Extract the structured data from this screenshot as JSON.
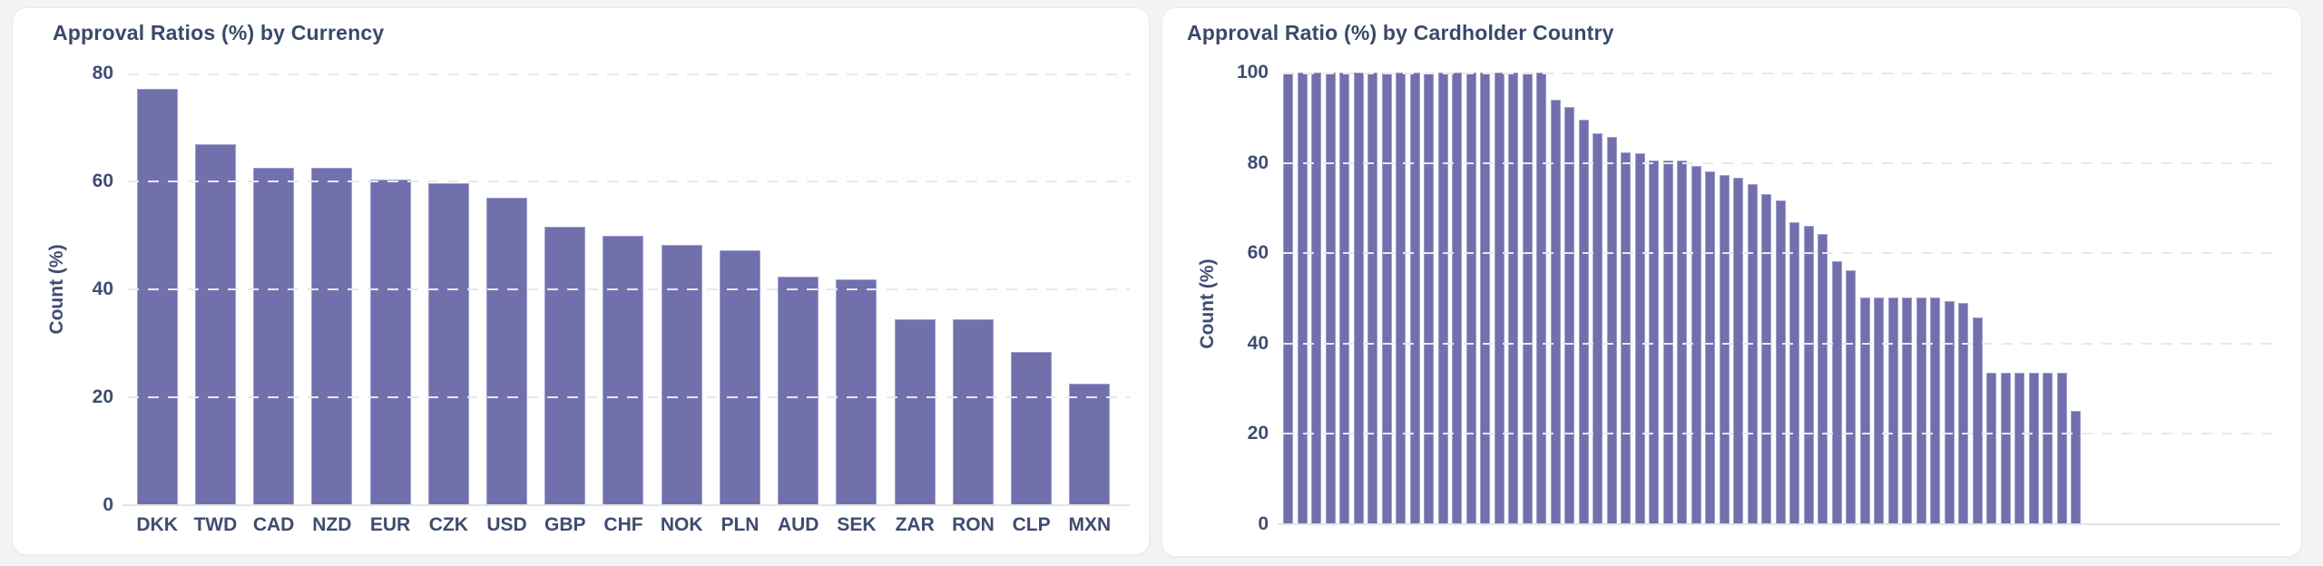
{
  "page": {
    "background_color": "#f4f4f6"
  },
  "theme": {
    "bar_color": "#7170ad",
    "bar_edge_color": "#9f9ecd",
    "grid_color": "#e8e8ec",
    "baseline_color": "#e3e3e8",
    "title_color": "#39496b",
    "tick_color": "#3f4d72",
    "card_background": "#ffffff"
  },
  "chart_data": [
    {
      "type": "bar",
      "title": "Approval Ratios (%) by Currency",
      "xlabel": "",
      "ylabel": "Count (%)",
      "ylim": [
        0,
        80
      ],
      "yticks": [
        0,
        20,
        40,
        60,
        80
      ],
      "grid": "horizontal-dashed",
      "legend": "none",
      "categories": [
        "DKK",
        "TWD",
        "CAD",
        "NZD",
        "EUR",
        "CZK",
        "USD",
        "GBP",
        "CHF",
        "NOK",
        "PLN",
        "AUD",
        "SEK",
        "ZAR",
        "RON",
        "CLP",
        "MXN"
      ],
      "values": [
        77.2,
        66.9,
        62.6,
        62.5,
        60.4,
        59.6,
        56.9,
        51.6,
        49.9,
        48.2,
        47.3,
        42.3,
        41.9,
        34.5,
        34.5,
        28.4,
        22.6
      ]
    },
    {
      "type": "bar",
      "title": "Approval Ratio (%) by Cardholder Country",
      "xlabel": "",
      "ylabel": "Count (%)",
      "ylim": [
        0,
        100
      ],
      "yticks": [
        0,
        20,
        40,
        60,
        80,
        100
      ],
      "grid": "horizontal-dashed",
      "legend": "none",
      "x_tick_labels_visible": false,
      "values": [
        100,
        100,
        100,
        100,
        100,
        100,
        100,
        100,
        100,
        100,
        100,
        100,
        100,
        100,
        100,
        100,
        100,
        100,
        100,
        94,
        92.3,
        89.6,
        86.6,
        85.7,
        82.4,
        82.1,
        80.6,
        80.5,
        80.6,
        79.4,
        78.2,
        77.4,
        76.8,
        75.3,
        73.2,
        71.6,
        66.9,
        66,
        64.3,
        58.3,
        56.3,
        50.3,
        50.3,
        50.3,
        50.3,
        50.3,
        50.3,
        49.4,
        49.1,
        45.8,
        33.5,
        33.5,
        33.5,
        33.5,
        33.5,
        33.5,
        25.2
      ]
    }
  ]
}
